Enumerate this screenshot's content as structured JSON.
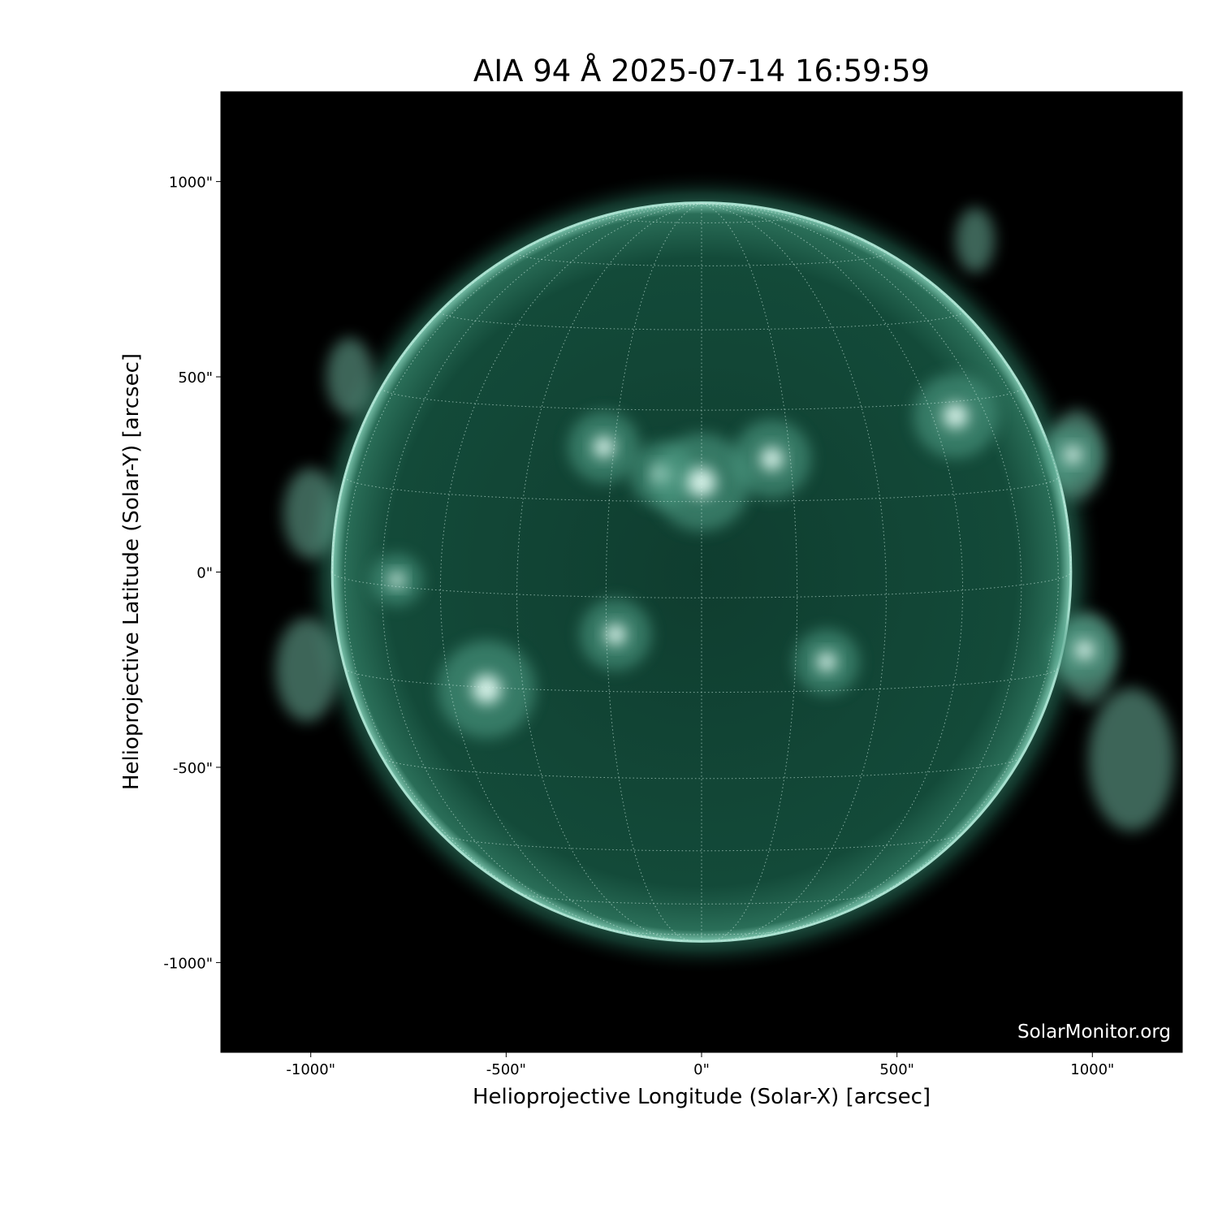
{
  "chart_data": {
    "type": "image",
    "title": "AIA 94 Å 2025-07-14 16:59:59",
    "xlabel": "Helioprojective Longitude (Solar-X) [arcsec]",
    "ylabel": "Helioprojective Latitude (Solar-Y) [arcsec]",
    "xlim": [
      -1230,
      1230
    ],
    "ylim": [
      -1230,
      1230
    ],
    "xticks": [
      -1000,
      -500,
      0,
      500,
      1000
    ],
    "xtick_labels": [
      "-1000\"",
      "-500\"",
      "0\"",
      "500\"",
      "1000\""
    ],
    "yticks": [
      1000,
      500,
      0,
      -500,
      -1000
    ],
    "ytick_labels": [
      "1000\"",
      "500\"",
      "0\"",
      "-500\"",
      "-1000\""
    ],
    "solar_radius_arcsec": 945,
    "grid": "heliographic, dotted, 15° spacing",
    "colormap": [
      "#000000",
      "#0d3a2c",
      "#2f7a63",
      "#9fd8c6",
      "#ffffff"
    ],
    "watermark": "SolarMonitor.org"
  }
}
